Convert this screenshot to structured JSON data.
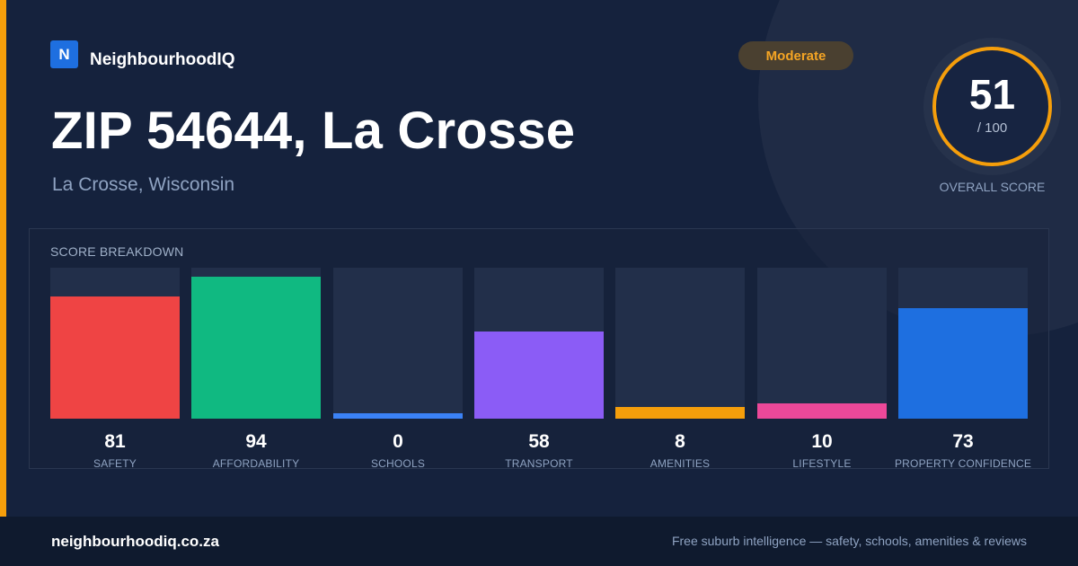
{
  "brand": {
    "logo_letter": "N",
    "name": "NeighbourhoodIQ"
  },
  "badge": {
    "label": "Moderate",
    "color": "#f59e0b"
  },
  "header": {
    "title": "ZIP 54644, La Crosse",
    "subtitle": "La Crosse, Wisconsin"
  },
  "overall": {
    "score": "51",
    "max": "/ 100",
    "label": "OVERALL SCORE"
  },
  "breakdown": {
    "title": "SCORE BREAKDOWN",
    "items": [
      {
        "label": "SAFETY",
        "value": "81",
        "score": 81,
        "color": "#ef4444"
      },
      {
        "label": "AFFORDABILITY",
        "value": "94",
        "score": 94,
        "color": "#10b981"
      },
      {
        "label": "SCHOOLS",
        "value": "0",
        "score": 0,
        "color": "#3b82f6"
      },
      {
        "label": "TRANSPORT",
        "value": "58",
        "score": 58,
        "color": "#8b5cf6"
      },
      {
        "label": "AMENITIES",
        "value": "8",
        "score": 8,
        "color": "#f59e0b"
      },
      {
        "label": "LIFESTYLE",
        "value": "10",
        "score": 10,
        "color": "#ec4899"
      },
      {
        "label": "PROPERTY CONFIDENCE",
        "value": "73",
        "score": 73,
        "color": "#1e6fe0"
      }
    ]
  },
  "footer": {
    "site": "neighbourhoodiq.co.za",
    "tagline": "Free suburb intelligence — safety, schools, amenities & reviews"
  }
}
